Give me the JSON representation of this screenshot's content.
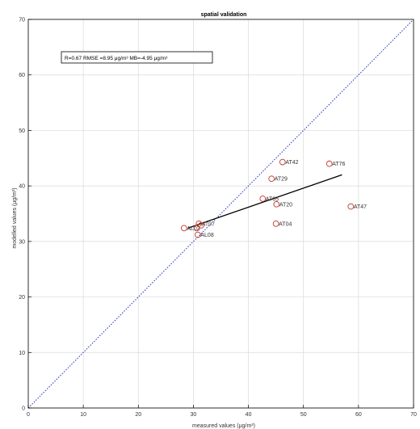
{
  "chart_data": {
    "type": "scatter",
    "title": "spatial validation",
    "xlabel": "measured values (μg/m³)",
    "ylabel": "modelled values (μg/m³)",
    "xlim": [
      0,
      70
    ],
    "ylim": [
      0,
      70
    ],
    "xticks": [
      0,
      10,
      20,
      30,
      40,
      50,
      60,
      70
    ],
    "yticks": [
      0,
      10,
      20,
      30,
      40,
      50,
      60,
      70
    ],
    "grid": true,
    "stats_text": "R=0.67  RMSE =8.95 μg/m³  MB=-4.95 μg/m³",
    "points": [
      {
        "label": "AT42",
        "x": 46.2,
        "y": 44.3
      },
      {
        "label": "AT76",
        "x": 54.7,
        "y": 44.0
      },
      {
        "label": "AT29",
        "x": 44.2,
        "y": 41.3
      },
      {
        "label": "AT05",
        "x": 42.6,
        "y": 37.7
      },
      {
        "label": "AT20",
        "x": 45.1,
        "y": 36.7
      },
      {
        "label": "AT47",
        "x": 58.6,
        "y": 36.3
      },
      {
        "label": "AT04",
        "x": 45.0,
        "y": 33.2
      },
      {
        "label": "AT07",
        "x": 31.0,
        "y": 33.2
      },
      {
        "label": "AL02",
        "x": 28.3,
        "y": 32.4
      },
      {
        "label": "AL08",
        "x": 30.8,
        "y": 31.2
      },
      {
        "label": "",
        "x": 30.6,
        "y": 32.4
      },
      {
        "label": "",
        "x": 31.4,
        "y": 32.9
      }
    ],
    "regression_line": {
      "x": [
        29.0,
        57.0
      ],
      "y": [
        32.4,
        42.0
      ]
    },
    "identity_line": {
      "x": [
        0,
        70
      ],
      "y": [
        0,
        70
      ]
    },
    "colors": {
      "points": "#c0392b",
      "regression": "#000000",
      "identity": "#1f2fb8",
      "grid": "#d9d9d9"
    }
  }
}
